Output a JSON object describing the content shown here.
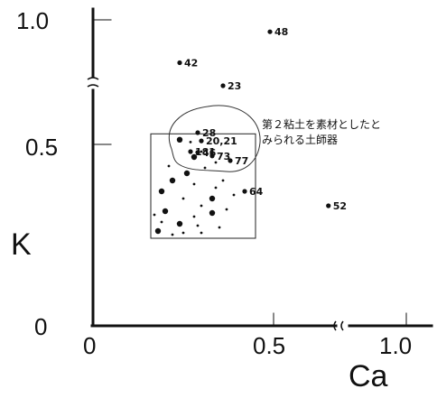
{
  "chart_data": {
    "type": "scatter",
    "xlabel": "Ca",
    "ylabel": "K",
    "xlim": [
      0,
      1.0
    ],
    "ylim": [
      0,
      1.0
    ],
    "axis_break": "between 0.5 and 1.0 on both axes",
    "x_ticks": [
      "0",
      "0.5",
      "1.0"
    ],
    "y_ticks": [
      "0",
      "0.5",
      "1.0"
    ],
    "grid": false,
    "annotation": {
      "line1": "第２粘土を素材としたと",
      "line2": "みられる土師器"
    },
    "labeled_points": [
      {
        "label": "48",
        "x": 0.49,
        "y": 0.95
      },
      {
        "label": "42",
        "x": 0.24,
        "y": 0.82
      },
      {
        "label": "23",
        "x": 0.36,
        "y": 0.75
      },
      {
        "label": "28",
        "x": 0.29,
        "y": 0.55
      },
      {
        "label": "20,21",
        "x": 0.3,
        "y": 0.515
      },
      {
        "label": "181",
        "x": 0.27,
        "y": 0.48
      },
      {
        "label": "46",
        "x": 0.29,
        "y": 0.478
      },
      {
        "label": "73",
        "x": 0.33,
        "y": 0.468
      },
      {
        "label": "77",
        "x": 0.38,
        "y": 0.455
      },
      {
        "label": "64",
        "x": 0.42,
        "y": 0.37
      },
      {
        "label": "52",
        "x": 0.72,
        "y": 0.33
      }
    ],
    "cluster_points": [
      {
        "x": 0.24,
        "y": 0.52
      },
      {
        "x": 0.27,
        "y": 0.51
      },
      {
        "x": 0.3,
        "y": 0.48
      },
      {
        "x": 0.28,
        "y": 0.465
      },
      {
        "x": 0.34,
        "y": 0.45
      },
      {
        "x": 0.31,
        "y": 0.435
      },
      {
        "x": 0.22,
        "y": 0.4
      },
      {
        "x": 0.28,
        "y": 0.39
      },
      {
        "x": 0.34,
        "y": 0.38
      },
      {
        "x": 0.19,
        "y": 0.37
      },
      {
        "x": 0.25,
        "y": 0.35
      },
      {
        "x": 0.3,
        "y": 0.33
      },
      {
        "x": 0.2,
        "y": 0.315
      },
      {
        "x": 0.17,
        "y": 0.305
      },
      {
        "x": 0.28,
        "y": 0.3
      },
      {
        "x": 0.33,
        "y": 0.31
      },
      {
        "x": 0.37,
        "y": 0.32
      },
      {
        "x": 0.19,
        "y": 0.285
      },
      {
        "x": 0.24,
        "y": 0.28
      },
      {
        "x": 0.29,
        "y": 0.275
      },
      {
        "x": 0.35,
        "y": 0.27
      },
      {
        "x": 0.18,
        "y": 0.26
      },
      {
        "x": 0.22,
        "y": 0.25
      },
      {
        "x": 0.3,
        "y": 0.255
      },
      {
        "x": 0.26,
        "y": 0.42
      },
      {
        "x": 0.36,
        "y": 0.4
      },
      {
        "x": 0.21,
        "y": 0.44
      },
      {
        "x": 0.33,
        "y": 0.35
      },
      {
        "x": 0.39,
        "y": 0.36
      },
      {
        "x": 0.25,
        "y": 0.255
      }
    ],
    "cluster_region": {
      "xmin": 0.16,
      "xmax": 0.45,
      "ymin": 0.24,
      "ymax": 0.545
    }
  }
}
